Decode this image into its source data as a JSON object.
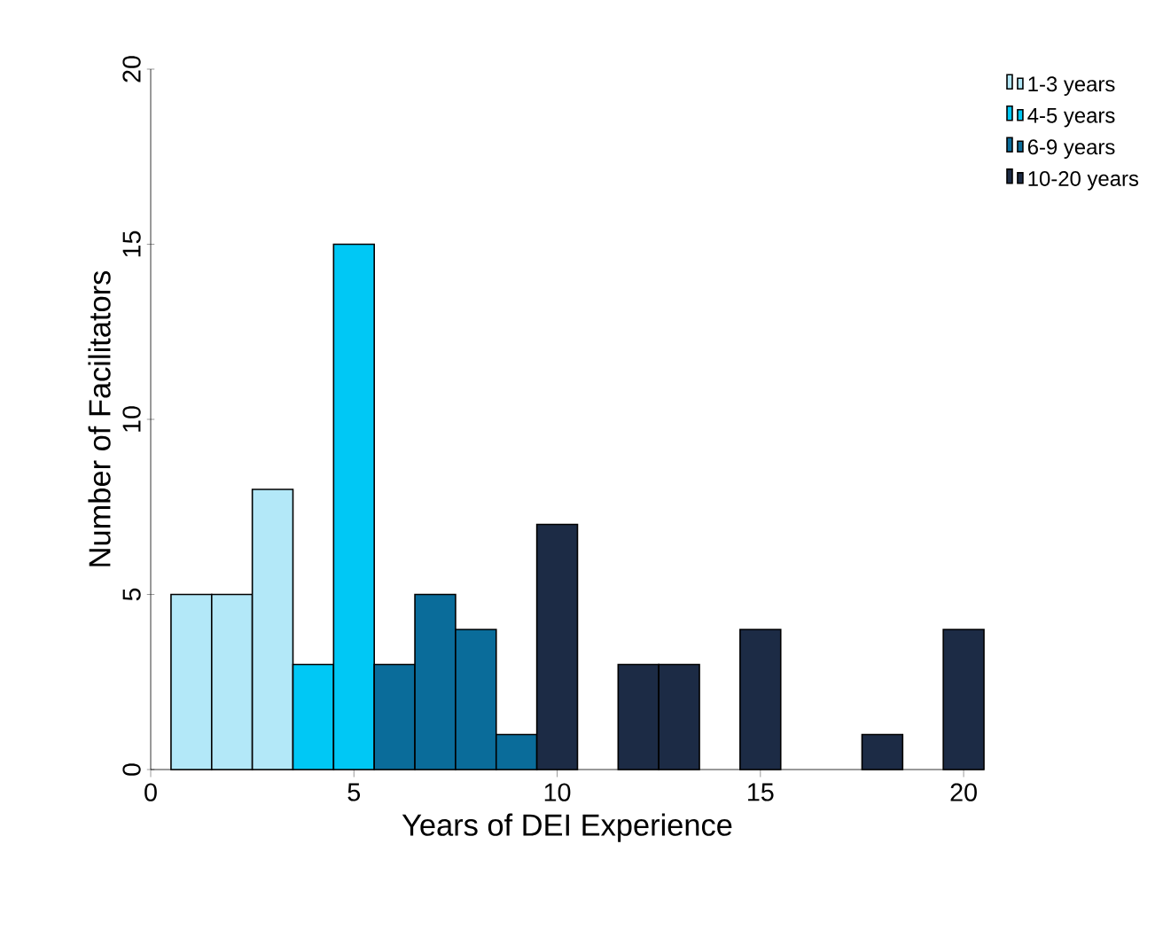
{
  "chart_data": {
    "type": "bar",
    "xlabel": "Years of DEI Experience",
    "ylabel": "Number of Facilitators",
    "xlim": [
      0,
      20.5
    ],
    "xticks": [
      0,
      5,
      10,
      15,
      20
    ],
    "ylim": [
      0,
      20
    ],
    "yticks": [
      0,
      5,
      10,
      15,
      20
    ],
    "legend": "top right",
    "series": [
      {
        "name": "1-3 years",
        "color": "#b3e8f8",
        "x": [
          1,
          2,
          3
        ],
        "values": [
          5,
          5,
          8
        ]
      },
      {
        "name": "4-5 years",
        "color": "#00c8f5",
        "x": [
          4,
          5
        ],
        "values": [
          3,
          15
        ]
      },
      {
        "name": "6-9 years",
        "color": "#0a6c9a",
        "x": [
          6,
          7,
          8,
          9
        ],
        "values": [
          3,
          5,
          4,
          1
        ]
      },
      {
        "name": "10-20 years",
        "color": "#1c2b45",
        "x": [
          10,
          12,
          13,
          15,
          18,
          20
        ],
        "values": [
          7,
          3,
          3,
          4,
          1,
          4
        ]
      }
    ]
  }
}
